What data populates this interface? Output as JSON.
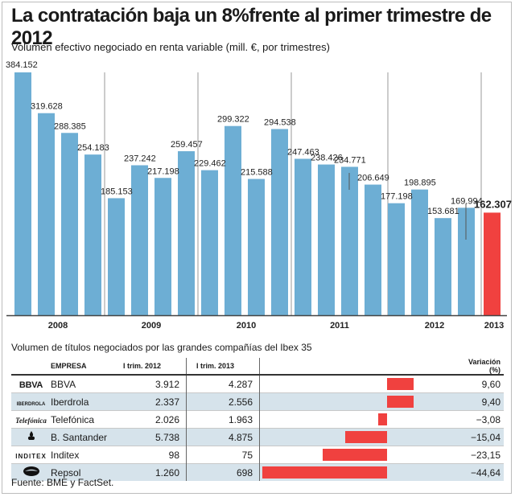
{
  "title": "La contratación baja un 8%frente al primer trimestre de 2012",
  "subtitle": "Volumen efectivo negociado en renta variable (mill. €, por trimestres)",
  "chart_data": {
    "type": "bar",
    "categories": [
      "2008 T1",
      "2008 T2",
      "2008 T3",
      "2008 T4",
      "2009 T1",
      "2009 T2",
      "2009 T3",
      "2009 T4",
      "2010 T1",
      "2010 T2",
      "2010 T3",
      "2010 T4",
      "2011 T1",
      "2011 T2",
      "2011 T3",
      "2011 T4",
      "2012 T1",
      "2012 T2",
      "2012 T3",
      "2012 T4",
      "2013 T1"
    ],
    "values": [
      384152,
      319628,
      288385,
      254183,
      185153,
      237242,
      217198,
      259457,
      229462,
      299322,
      215588,
      294538,
      247463,
      238426,
      234771,
      206649,
      177198,
      198895,
      153681,
      169994,
      162307
    ],
    "labels": [
      "384.152",
      "319.628",
      "288.385",
      "254.183",
      "185.153",
      "237.242",
      "217.198",
      "259.457",
      "229.462",
      "299.322",
      "215.588",
      "294.538",
      "247.463",
      "238.426",
      "234.771",
      "206.649",
      "177.198",
      "198.895",
      "153.681",
      "169.994",
      "162.307"
    ],
    "year_labels": [
      "2008",
      "2009",
      "2010",
      "2011",
      "2012",
      "2013"
    ],
    "ylim": [
      0,
      400000
    ],
    "colors": {
      "bar": "#6daed4",
      "highlight": "#f0413f",
      "grid": "#9a9a9a"
    },
    "grid": true
  },
  "table": {
    "title": "Volumen de títulos negociados por las grandes compañías del Ibex 35",
    "headers": {
      "company": "EMPRESA",
      "q1_2012": "I trim. 2012",
      "q1_2013": "I trim. 2013",
      "variation": "Variación (%)"
    },
    "rows": [
      {
        "logo": "BBVA",
        "logo_icon": "bbva-logo",
        "name": "BBVA",
        "q1_2012": "3.912",
        "q1_2013": "4.287",
        "variation": 9.6,
        "variation_label": "9,60"
      },
      {
        "logo": "IBERDROLA",
        "logo_icon": "iberdrola-logo",
        "name": "Iberdrola",
        "q1_2012": "2.337",
        "q1_2013": "2.556",
        "variation": 9.4,
        "variation_label": "9,40"
      },
      {
        "logo": "Telefónica",
        "logo_icon": "telefonica-logo",
        "name": "Telefónica",
        "q1_2012": "2.026",
        "q1_2013": "1.963",
        "variation": -3.08,
        "variation_label": "−3,08"
      },
      {
        "logo": "",
        "logo_icon": "santander-flame-logo",
        "name": "B. Santander",
        "q1_2012": "5.738",
        "q1_2013": "4.875",
        "variation": -15.04,
        "variation_label": "−15,04"
      },
      {
        "logo": "INDITEX",
        "logo_icon": "inditex-logo",
        "name": "Inditex",
        "q1_2012": "98",
        "q1_2013": "75",
        "variation": -23.15,
        "variation_label": "−23,15"
      },
      {
        "logo": "",
        "logo_icon": "repsol-logo",
        "name": "Repsol",
        "q1_2012": "1.260",
        "q1_2013": "698",
        "variation": -44.64,
        "variation_label": "−44,64"
      }
    ]
  },
  "source": "Fuente: BME y FactSet."
}
